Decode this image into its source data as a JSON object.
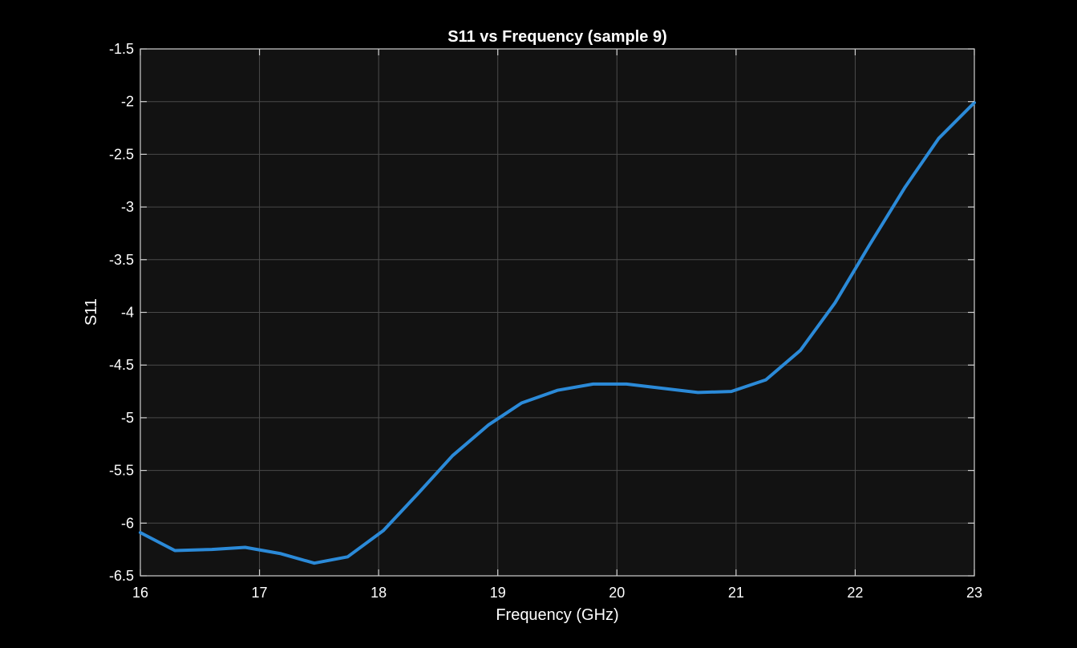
{
  "chart_data": {
    "type": "line",
    "title": "S11 vs Frequency (sample 9)",
    "xlabel": "Frequency (GHz)",
    "ylabel": "S11",
    "xlim": [
      16,
      23
    ],
    "ylim": [
      -6.5,
      -1.5
    ],
    "x_ticks": [
      "16",
      "17",
      "18",
      "19",
      "20",
      "21",
      "22",
      "23"
    ],
    "y_ticks": [
      "-1.5",
      "-2",
      "-2.5",
      "-3",
      "-3.5",
      "-4",
      "-4.5",
      "-5",
      "-5.5",
      "-6",
      "-6.5"
    ],
    "grid": true,
    "colors": {
      "background": "#000000",
      "plot_area": "#121212",
      "axes": "#d0d0d0",
      "series": "#2b8ad8"
    },
    "series": [
      {
        "x": [
          16.0,
          16.29,
          16.6,
          16.88,
          17.18,
          17.46,
          17.74,
          18.04,
          18.33,
          18.62,
          18.92,
          19.2,
          19.5,
          19.8,
          20.08,
          20.38,
          20.68,
          20.96,
          21.25,
          21.54,
          21.83,
          22.12,
          22.42,
          22.7,
          23.0
        ],
        "y": [
          -6.09,
          -6.26,
          -6.25,
          -6.23,
          -6.29,
          -6.38,
          -6.32,
          -6.07,
          -5.72,
          -5.36,
          -5.07,
          -4.86,
          -4.74,
          -4.68,
          -4.68,
          -4.72,
          -4.76,
          -4.75,
          -4.64,
          -4.36,
          -3.91,
          -3.36,
          -2.81,
          -2.35,
          -2.01
        ]
      }
    ]
  }
}
